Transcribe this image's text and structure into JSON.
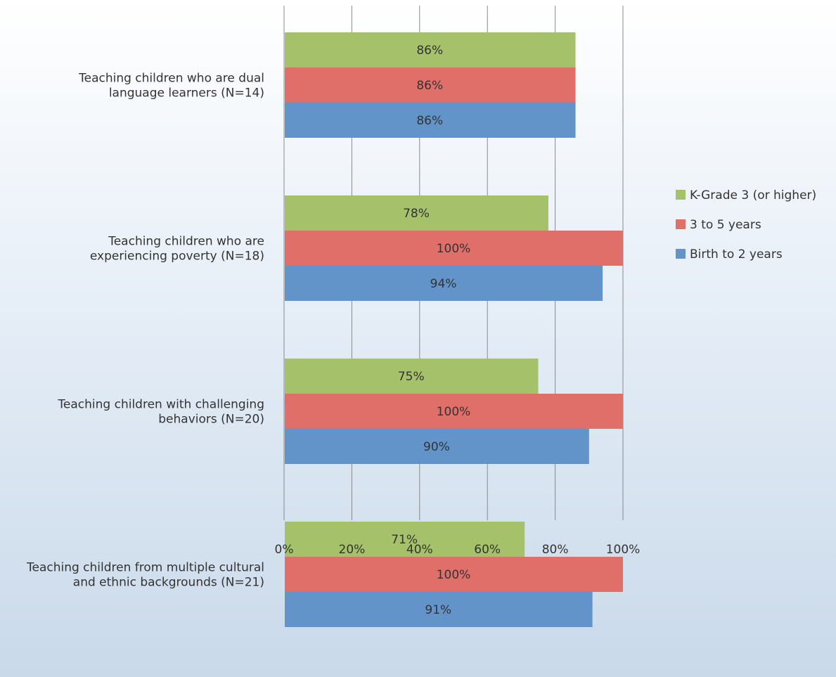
{
  "chart_data": {
    "type": "bar",
    "orientation": "horizontal",
    "title": "",
    "xlabel": "",
    "ylabel": "",
    "xlim": [
      0,
      100
    ],
    "x_ticks": [
      "0%",
      "20%",
      "40%",
      "60%",
      "80%",
      "100%"
    ],
    "grid": true,
    "legend_position": "right",
    "categories": [
      [
        "Teaching children who are dual",
        "language learners (N=14)"
      ],
      [
        "Teaching children who are",
        "experiencing poverty (N=18)"
      ],
      [
        "Teaching children with challenging",
        "behaviors (N=20)"
      ],
      [
        "Teaching children from multiple cultural",
        "and ethnic backgrounds (N=21)"
      ]
    ],
    "series": [
      {
        "name": "K-Grade 3 (or higher)",
        "color": "#a5c26b",
        "values": [
          86,
          78,
          75,
          71
        ],
        "labels": [
          "86%",
          "78%",
          "75%",
          "71%"
        ]
      },
      {
        "name": "3 to 5 years",
        "color": "#e06e69",
        "values": [
          86,
          100,
          100,
          100
        ],
        "labels": [
          "86%",
          "100%",
          "100%",
          "100%"
        ]
      },
      {
        "name": "Birth to 2 years",
        "color": "#6293c9",
        "values": [
          86,
          94,
          90,
          91
        ],
        "labels": [
          "86%",
          "94%",
          "90%",
          "91%"
        ]
      }
    ]
  }
}
